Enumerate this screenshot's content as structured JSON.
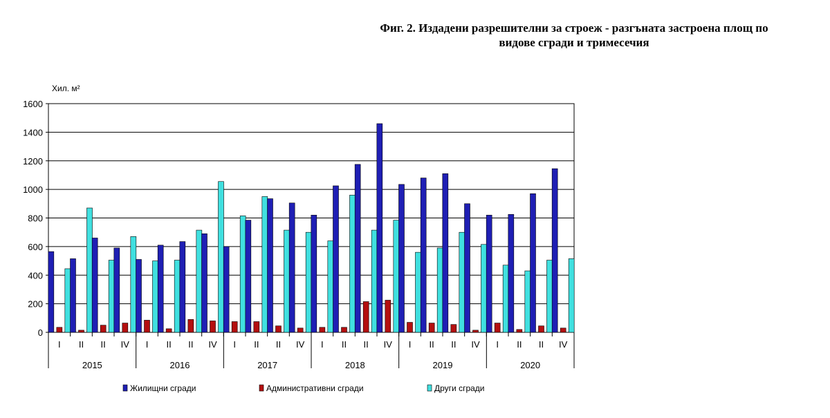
{
  "title_line1": "Фиг. 2. Издадени разрешителни за строеж - разгъната застроена площ по",
  "title_line2": "видове сгради и тримесечия",
  "chart_data": {
    "type": "bar",
    "ylabel": "Хил. м²",
    "ylim": [
      0,
      1600
    ],
    "yticks": [
      0,
      200,
      400,
      600,
      800,
      1000,
      1200,
      1400,
      1600
    ],
    "grid": true,
    "legend_position": "bottom",
    "quarter_labels": [
      "I",
      "II",
      "II",
      "IV",
      "I",
      "II",
      "II",
      "IV",
      "I",
      "II",
      "II",
      "IV",
      "I",
      "II",
      "II",
      "IV",
      "I",
      "II",
      "II",
      "IV",
      "I",
      "II",
      "II",
      "IV"
    ],
    "years": [
      "2015",
      "2016",
      "2017",
      "2018",
      "2019",
      "2020"
    ],
    "series": [
      {
        "name": "Жилищни сгради",
        "color": "#1f1fb4",
        "values": [
          565,
          515,
          660,
          590,
          510,
          610,
          635,
          690,
          600,
          785,
          935,
          905,
          820,
          1025,
          1175,
          1460,
          1035,
          1080,
          1110,
          900,
          820,
          825,
          970,
          1145
        ]
      },
      {
        "name": "Административни сгради",
        "color": "#b40f0f",
        "values": [
          35,
          15,
          50,
          65,
          85,
          25,
          90,
          80,
          75,
          75,
          45,
          30,
          35,
          35,
          215,
          225,
          70,
          65,
          55,
          15,
          65,
          20,
          45,
          30
        ]
      },
      {
        "name": "Други сгради",
        "color": "#40e0e0",
        "values": [
          445,
          870,
          505,
          670,
          500,
          505,
          715,
          1055,
          815,
          950,
          715,
          700,
          640,
          960,
          715,
          785,
          560,
          590,
          700,
          615,
          470,
          430,
          505,
          515
        ]
      }
    ]
  }
}
